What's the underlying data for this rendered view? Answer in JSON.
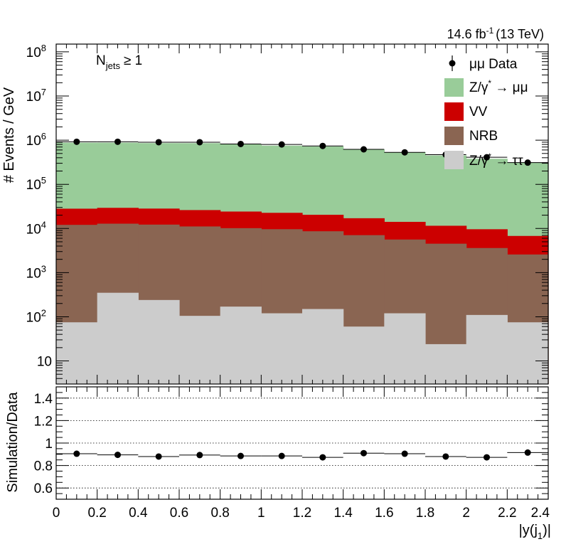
{
  "chart_data": [
    {
      "type": "bar",
      "stacked": true,
      "log_y": true,
      "bin_edges": [
        0,
        0.2,
        0.4,
        0.6,
        0.8,
        1.0,
        1.2,
        1.4,
        1.6,
        1.8,
        2.0,
        2.2,
        2.4
      ],
      "xlim": [
        0,
        2.4
      ],
      "ylim": [
        3,
        150000000
      ],
      "ylabel": "# Events / GeV",
      "annotation_main": "N",
      "annotation_sub": "jets",
      "annotation_rel": "≥ 1",
      "lumi_main": "14.6 fb",
      "lumi_sup": "-1",
      "lumi_rest": "(13 TeV)",
      "y_ticks": [
        {
          "value": 10,
          "label": "10",
          "sup": ""
        },
        {
          "value": 100,
          "label": "10",
          "sup": "2"
        },
        {
          "value": 1000,
          "label": "10",
          "sup": "3"
        },
        {
          "value": 10000,
          "label": "10",
          "sup": "4"
        },
        {
          "value": 100000,
          "label": "10",
          "sup": "5"
        },
        {
          "value": 1000000,
          "label": "10",
          "sup": "6"
        },
        {
          "value": 10000000,
          "label": "10",
          "sup": "7"
        },
        {
          "value": 100000000,
          "label": "10",
          "sup": "8"
        }
      ],
      "series": [
        {
          "key": "ztautau",
          "color": "#cccccc",
          "legend_pre": "Z/γ",
          "legend_sup": "*",
          "legend_post": " → ττ",
          "values": [
            75,
            350,
            240,
            105,
            170,
            120,
            150,
            60,
            120,
            24,
            110,
            75
          ]
        },
        {
          "key": "nrb",
          "color": "#8a6552",
          "legend_pre": "NRB",
          "legend_sup": "",
          "legend_post": "",
          "values": [
            12000,
            12500,
            12000,
            11000,
            10000,
            9500,
            8500,
            7000,
            5500,
            4500,
            3500,
            2500
          ]
        },
        {
          "key": "vv",
          "color": "#cc0000",
          "legend_pre": "VV",
          "legend_sup": "",
          "legend_post": "",
          "values": [
            16000,
            16500,
            16000,
            15000,
            14000,
            13000,
            11800,
            10000,
            8500,
            7000,
            6000,
            4200
          ]
        },
        {
          "key": "zmumu",
          "color": "#99cc99",
          "legend_pre": "Z/γ",
          "legend_sup": "*",
          "legend_post": " → μμ",
          "values": [
            850000,
            850000,
            830000,
            830000,
            780000,
            730000,
            700000,
            600000,
            520000,
            440000,
            370000,
            300000
          ]
        }
      ],
      "data": {
        "legend_label": "μμ Data",
        "x": [
          0.1,
          0.3,
          0.5,
          0.7,
          0.9,
          1.1,
          1.3,
          1.5,
          1.7,
          1.9,
          2.1,
          2.3
        ],
        "values": [
          920000,
          920000,
          900000,
          900000,
          820000,
          800000,
          740000,
          620000,
          530000,
          470000,
          410000,
          310000
        ]
      }
    },
    {
      "type": "scatter",
      "xlim": [
        0,
        2.4
      ],
      "ylim": [
        0.5,
        1.5
      ],
      "xlabel": "|y(j",
      "xlabel_sub": "1",
      "xlabel_close": ")|",
      "ylabel": "Simulation/Data",
      "x_ticks": [
        "0",
        "0.2",
        "0.4",
        "0.6",
        "0.8",
        "1",
        "1.2",
        "1.4",
        "1.6",
        "1.8",
        "2",
        "2.2",
        "2.4"
      ],
      "y_ticks": [
        "0.6",
        "0.8",
        "1",
        "1.2",
        "1.4"
      ],
      "gridlines_y": [
        0.6,
        0.8,
        1.0,
        1.2,
        1.4
      ],
      "x": [
        0.1,
        0.3,
        0.5,
        0.7,
        0.9,
        1.1,
        1.3,
        1.5,
        1.7,
        1.9,
        2.1,
        2.3
      ],
      "values": [
        0.905,
        0.895,
        0.88,
        0.893,
        0.885,
        0.885,
        0.873,
        0.91,
        0.905,
        0.88,
        0.873,
        0.915
      ]
    }
  ]
}
